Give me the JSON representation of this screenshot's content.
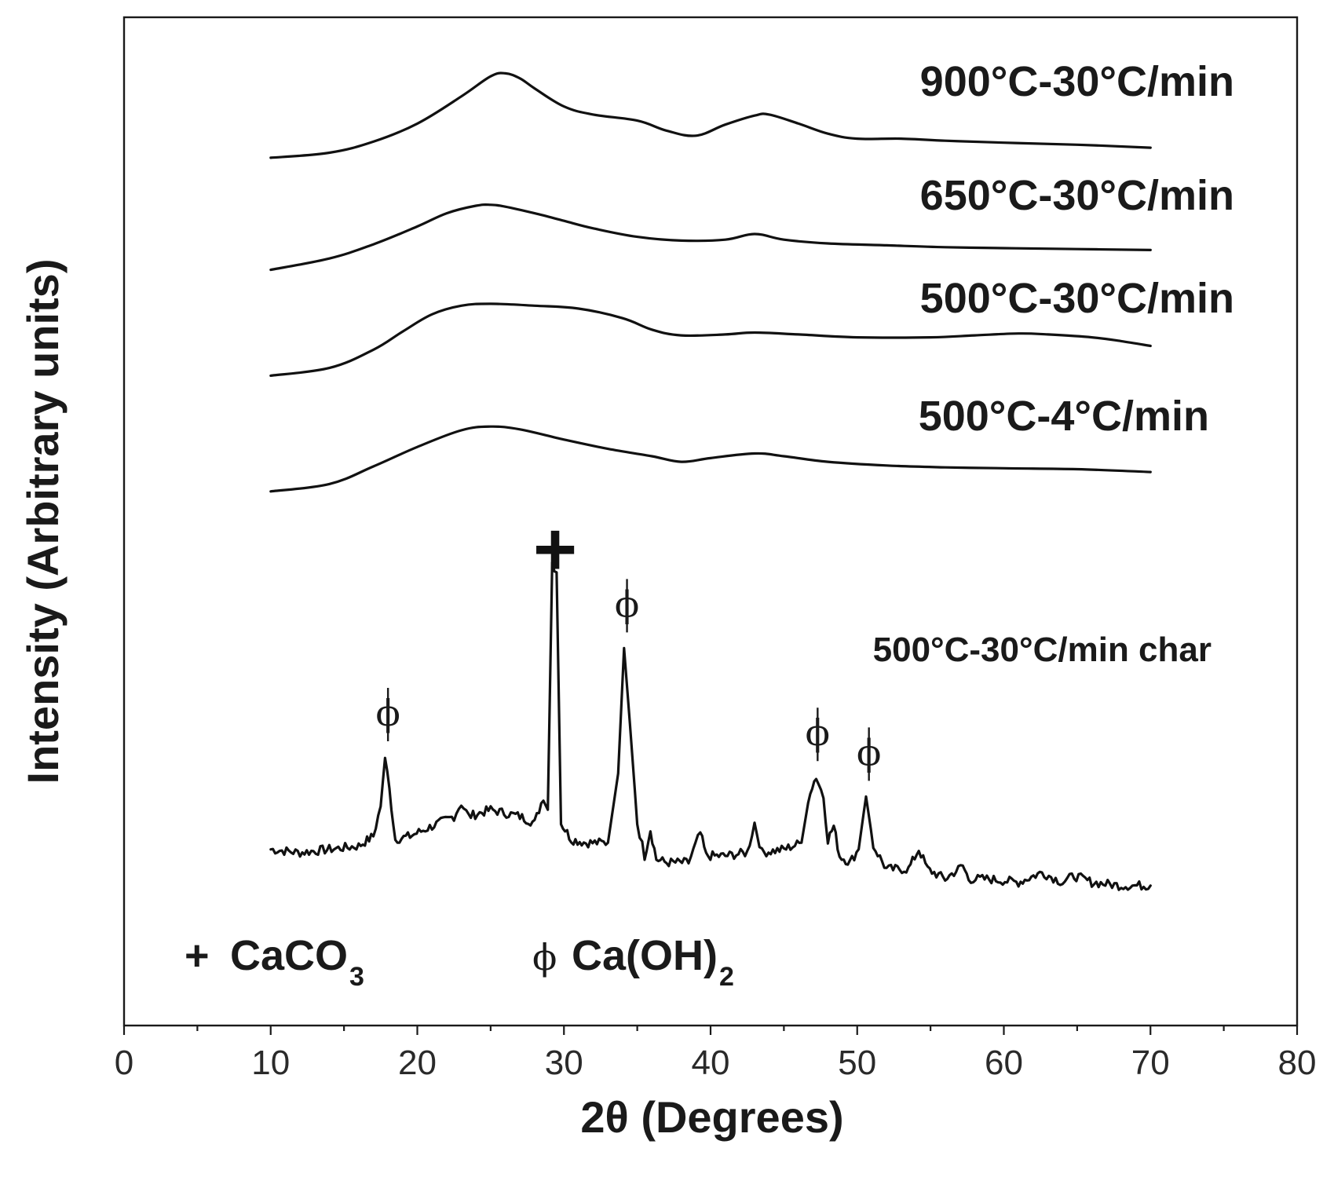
{
  "chart_data": {
    "type": "line",
    "xlabel": "2θ (Degrees)",
    "ylabel": "Intensity (Arbitrary units)",
    "xlim": [
      0,
      80
    ],
    "x_ticks": [
      0,
      10,
      20,
      30,
      40,
      50,
      60,
      70,
      80
    ],
    "y_ticks_shown": false,
    "series": [
      {
        "name": "900°C-30°C/min",
        "points": [
          [
            10,
            0.11
          ],
          [
            14,
            0.16
          ],
          [
            17,
            0.27
          ],
          [
            20,
            0.45
          ],
          [
            23,
            0.72
          ],
          [
            25,
            0.92
          ],
          [
            26,
            0.95
          ],
          [
            27,
            0.9
          ],
          [
            28,
            0.8
          ],
          [
            30,
            0.62
          ],
          [
            32,
            0.54
          ],
          [
            35,
            0.48
          ],
          [
            37,
            0.38
          ],
          [
            39,
            0.33
          ],
          [
            41,
            0.44
          ],
          [
            43,
            0.53
          ],
          [
            44,
            0.54
          ],
          [
            46,
            0.45
          ],
          [
            48,
            0.35
          ],
          [
            50,
            0.3
          ],
          [
            53,
            0.3
          ],
          [
            56,
            0.28
          ],
          [
            60,
            0.26
          ],
          [
            65,
            0.24
          ],
          [
            70,
            0.21
          ]
        ]
      },
      {
        "name": "650°C-30°C/min",
        "points": [
          [
            10,
            0.12
          ],
          [
            14,
            0.24
          ],
          [
            17,
            0.39
          ],
          [
            20,
            0.58
          ],
          [
            22,
            0.72
          ],
          [
            24,
            0.8
          ],
          [
            25,
            0.81
          ],
          [
            26,
            0.79
          ],
          [
            28,
            0.72
          ],
          [
            30,
            0.64
          ],
          [
            32,
            0.56
          ],
          [
            35,
            0.47
          ],
          [
            38,
            0.43
          ],
          [
            41,
            0.44
          ],
          [
            43,
            0.5
          ],
          [
            45,
            0.44
          ],
          [
            48,
            0.4
          ],
          [
            52,
            0.38
          ],
          [
            56,
            0.36
          ],
          [
            60,
            0.35
          ],
          [
            65,
            0.34
          ],
          [
            70,
            0.33
          ]
        ]
      },
      {
        "name": "500°C-30°C/min",
        "points": [
          [
            10,
            0.12
          ],
          [
            14,
            0.2
          ],
          [
            17,
            0.39
          ],
          [
            19,
            0.58
          ],
          [
            21,
            0.76
          ],
          [
            23,
            0.85
          ],
          [
            25,
            0.87
          ],
          [
            28,
            0.85
          ],
          [
            31,
            0.82
          ],
          [
            34,
            0.72
          ],
          [
            36,
            0.6
          ],
          [
            38,
            0.54
          ],
          [
            41,
            0.55
          ],
          [
            43,
            0.57
          ],
          [
            46,
            0.55
          ],
          [
            50,
            0.52
          ],
          [
            55,
            0.52
          ],
          [
            58,
            0.54
          ],
          [
            61,
            0.56
          ],
          [
            63,
            0.55
          ],
          [
            66,
            0.52
          ],
          [
            68,
            0.48
          ],
          [
            70,
            0.43
          ]
        ]
      },
      {
        "name": "500°C-4°C/min",
        "points": [
          [
            10,
            0.12
          ],
          [
            14,
            0.2
          ],
          [
            17,
            0.39
          ],
          [
            20,
            0.6
          ],
          [
            23,
            0.78
          ],
          [
            25,
            0.82
          ],
          [
            27,
            0.79
          ],
          [
            30,
            0.68
          ],
          [
            33,
            0.58
          ],
          [
            36,
            0.5
          ],
          [
            38,
            0.44
          ],
          [
            40,
            0.48
          ],
          [
            43,
            0.53
          ],
          [
            45,
            0.5
          ],
          [
            48,
            0.44
          ],
          [
            52,
            0.4
          ],
          [
            56,
            0.38
          ],
          [
            60,
            0.37
          ],
          [
            65,
            0.36
          ],
          [
            70,
            0.33
          ]
        ]
      },
      {
        "name": "500°C-30°C/min char",
        "points": [
          [
            10,
            0.12
          ],
          [
            12,
            0.11
          ],
          [
            14,
            0.12
          ],
          [
            16,
            0.13
          ],
          [
            17,
            0.16
          ],
          [
            17.5,
            0.25
          ],
          [
            17.8,
            0.4
          ],
          [
            18.1,
            0.3
          ],
          [
            18.5,
            0.15
          ],
          [
            19.5,
            0.16
          ],
          [
            21,
            0.19
          ],
          [
            22.5,
            0.22
          ],
          [
            23,
            0.26
          ],
          [
            23.5,
            0.22
          ],
          [
            25,
            0.24
          ],
          [
            27,
            0.22
          ],
          [
            28,
            0.2
          ],
          [
            28.6,
            0.28
          ],
          [
            28.9,
            0.24
          ],
          [
            29.2,
            0.99
          ],
          [
            29.5,
            0.96
          ],
          [
            29.8,
            0.2
          ],
          [
            30.5,
            0.15
          ],
          [
            31.5,
            0.14
          ],
          [
            33,
            0.14
          ],
          [
            33.7,
            0.35
          ],
          [
            34.1,
            0.73
          ],
          [
            34.5,
            0.5
          ],
          [
            35,
            0.2
          ],
          [
            35.5,
            0.1
          ],
          [
            35.9,
            0.18
          ],
          [
            36.3,
            0.09
          ],
          [
            37,
            0.08
          ],
          [
            38.5,
            0.08
          ],
          [
            39.3,
            0.17
          ],
          [
            39.7,
            0.1
          ],
          [
            41,
            0.1
          ],
          [
            42.5,
            0.11
          ],
          [
            43,
            0.2
          ],
          [
            43.5,
            0.11
          ],
          [
            45,
            0.12
          ],
          [
            46.2,
            0.14
          ],
          [
            46.8,
            0.3
          ],
          [
            47.2,
            0.34
          ],
          [
            47.7,
            0.28
          ],
          [
            48,
            0.15
          ],
          [
            48.4,
            0.19
          ],
          [
            48.8,
            0.1
          ],
          [
            49.5,
            0.08
          ],
          [
            50.1,
            0.12
          ],
          [
            50.6,
            0.28
          ],
          [
            51.1,
            0.13
          ],
          [
            52,
            0.06
          ],
          [
            53.5,
            0.06
          ],
          [
            54.2,
            0.12
          ],
          [
            54.8,
            0.06
          ],
          [
            56,
            0.03
          ],
          [
            57.2,
            0.07
          ],
          [
            57.6,
            0.03
          ],
          [
            59,
            0.03
          ],
          [
            61,
            0.02
          ],
          [
            62.6,
            0.05
          ],
          [
            64,
            0.02
          ],
          [
            64.8,
            0.04
          ],
          [
            66,
            0.02
          ],
          [
            68,
            0.01
          ],
          [
            70,
            0.01
          ]
        ]
      }
    ],
    "peak_markers": [
      {
        "symbol": "ϕ",
        "x": 18
      },
      {
        "symbol": "✚",
        "x": 29.4
      },
      {
        "symbol": "ϕ",
        "x": 34.3
      },
      {
        "symbol": "ϕ",
        "x": 47.3
      },
      {
        "symbol": "ϕ",
        "x": 50.8
      }
    ],
    "legend": {
      "placement": "bottom-left",
      "entries": [
        {
          "symbol": "+",
          "label": "CaCO",
          "subscript": "3"
        },
        {
          "symbol": "ϕ",
          "label": "Ca(OH)",
          "subscript": "2"
        }
      ]
    },
    "grid": false
  }
}
